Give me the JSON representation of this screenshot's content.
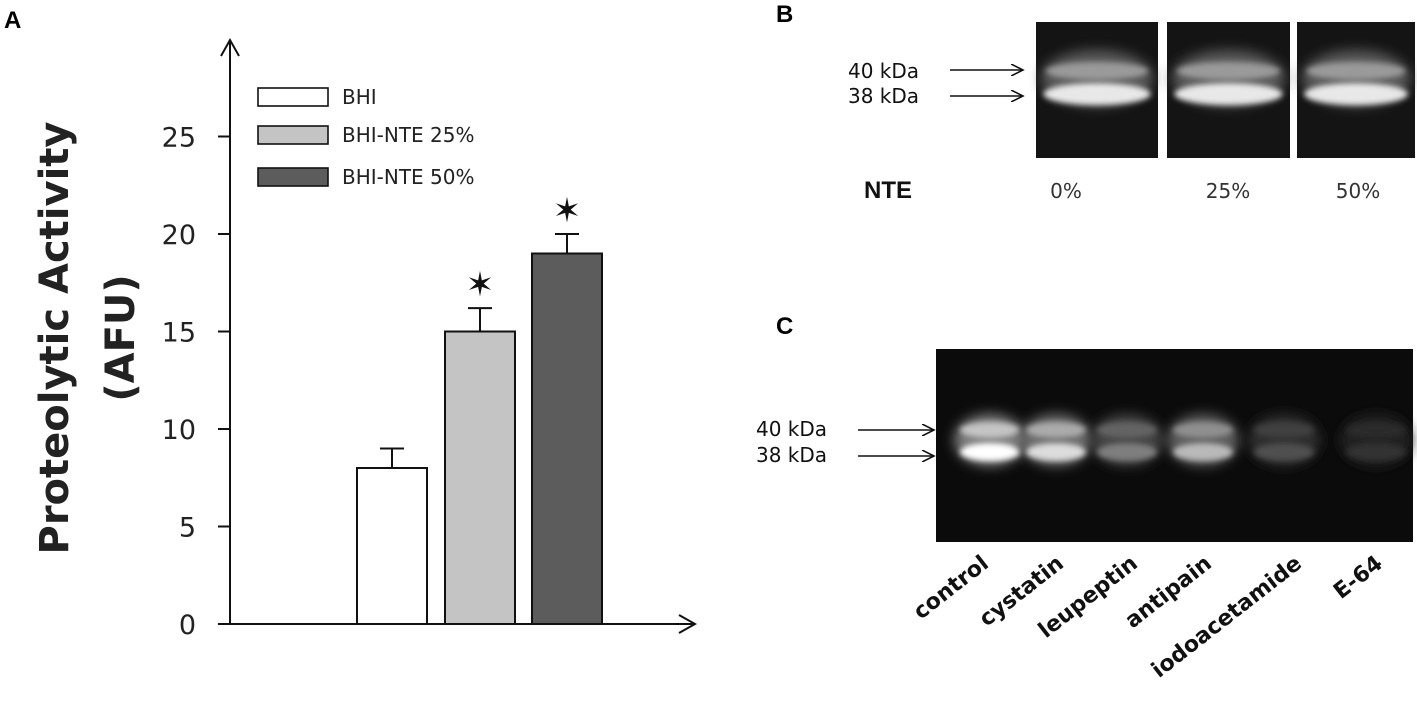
{
  "panels": {
    "a": "A",
    "b": "B",
    "c": "C"
  },
  "chart_data": {
    "type": "bar",
    "categories": [
      "BHI",
      "BHI-NTE  25%",
      "BHI-NTE  50%"
    ],
    "values": [
      8,
      15,
      19
    ],
    "errors": [
      1.0,
      1.2,
      1.0
    ],
    "significant": [
      false,
      true,
      true
    ],
    "colors": [
      "#ffffff",
      "#c4c4c4",
      "#5c5c5c"
    ],
    "ylabel_line1": "Proteolytic Activity",
    "ylabel_line2": "(AFU)",
    "xlabel": "",
    "ylim": [
      0,
      30
    ],
    "yticks": [
      0,
      5,
      10,
      15,
      20,
      25
    ],
    "legend": [
      "BHI",
      "BHI-NTE  25%",
      "BHI-NTE  50%"
    ],
    "legend_position": "top-left",
    "significance_marker": "✶"
  },
  "gel_b": {
    "markers": [
      "40 kDa",
      "38 kDa"
    ],
    "row_label": "NTE",
    "lanes": [
      "0%",
      "25%",
      "50%"
    ]
  },
  "gel_c": {
    "markers": [
      "40 kDa",
      "38 kDa"
    ],
    "lanes": [
      "control",
      "cystatin",
      "leupeptin",
      "antipain",
      "iodoacetamide",
      "E-64"
    ],
    "relative_intensity": [
      1.0,
      0.85,
      0.45,
      0.7,
      0.25,
      0.12
    ]
  }
}
